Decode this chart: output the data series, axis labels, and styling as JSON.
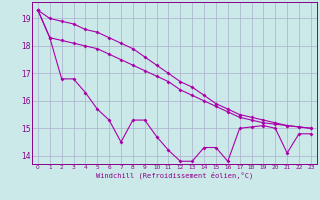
{
  "xlabel": "Windchill (Refroidissement éolien,°C)",
  "background_color": "#cce9e9",
  "grid_color": "#aab0cc",
  "line_color": "#aa00aa",
  "ylim": [
    13.7,
    19.6
  ],
  "xlim": [
    -0.5,
    23.5
  ],
  "yticks": [
    14,
    15,
    16,
    17,
    18,
    19
  ],
  "xticks": [
    0,
    1,
    2,
    3,
    4,
    5,
    6,
    7,
    8,
    9,
    10,
    11,
    12,
    13,
    14,
    15,
    16,
    17,
    18,
    19,
    20,
    21,
    22,
    23
  ],
  "series1_x": [
    0,
    1,
    2,
    3,
    4,
    5,
    6,
    7,
    8,
    9,
    10,
    11,
    12,
    13,
    14,
    15,
    16,
    17,
    18,
    19,
    20,
    21,
    22,
    23
  ],
  "series1_y": [
    19.3,
    19.0,
    18.9,
    18.8,
    18.6,
    18.5,
    18.3,
    18.1,
    17.9,
    17.6,
    17.3,
    17.0,
    16.7,
    16.5,
    16.2,
    15.9,
    15.7,
    15.5,
    15.4,
    15.3,
    15.2,
    15.1,
    15.05,
    15.0
  ],
  "series2_x": [
    0,
    1,
    2,
    3,
    4,
    5,
    6,
    7,
    8,
    9,
    10,
    11,
    12,
    13,
    14,
    15,
    16,
    17,
    18,
    19,
    20,
    21,
    22,
    23
  ],
  "series2_y": [
    19.3,
    18.3,
    18.2,
    18.1,
    18.0,
    17.9,
    17.7,
    17.5,
    17.3,
    17.1,
    16.9,
    16.7,
    16.4,
    16.2,
    16.0,
    15.8,
    15.6,
    15.4,
    15.3,
    15.2,
    15.15,
    15.1,
    15.05,
    15.0
  ],
  "series3_x": [
    0,
    1,
    2,
    3,
    4,
    5,
    6,
    7,
    8,
    9,
    10,
    11,
    12,
    13,
    14,
    15,
    16,
    17,
    18,
    19,
    20,
    21,
    22,
    23
  ],
  "series3_y": [
    19.3,
    18.3,
    16.8,
    16.8,
    16.3,
    15.7,
    15.3,
    14.5,
    15.3,
    15.3,
    14.7,
    14.2,
    13.8,
    13.8,
    14.3,
    14.3,
    13.8,
    15.0,
    15.05,
    15.1,
    15.0,
    14.1,
    14.8,
    14.8
  ]
}
